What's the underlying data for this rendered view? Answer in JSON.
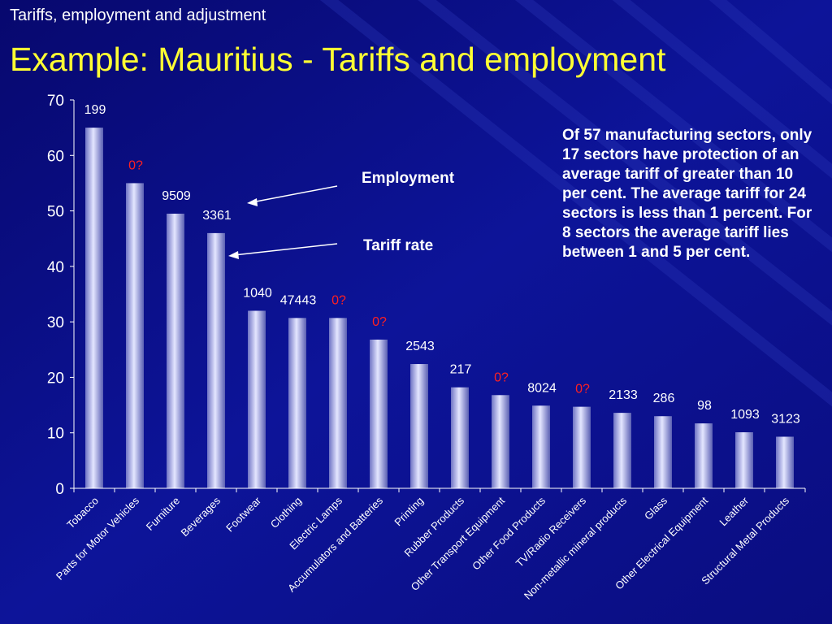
{
  "slide": {
    "subtitle": "Tariffs, employment and adjustment",
    "title": "Example: Mauritius - Tariffs and employment",
    "note": "Of 57 manufacturing sectors, only 17 sectors have protection of an average tariff of greater than 10 per cent. The average tariff for 24 sectors is less than 1 percent. For 8 sectors the average tariff lies between 1 and 5 per cent.",
    "callout_employment": "Employment",
    "callout_tariff": "Tariff rate"
  },
  "colors": {
    "background": "#0b0f8a",
    "title": "#ffff33",
    "text": "#ffffff",
    "label_unknown": "#ff2020",
    "bar": "#b8bce8"
  },
  "chart_data": {
    "type": "bar",
    "title": "",
    "xlabel": "",
    "ylabel": "",
    "ylim": [
      0,
      70
    ],
    "yticks": [
      0,
      10,
      20,
      30,
      40,
      50,
      60,
      70
    ],
    "grid": false,
    "categories": [
      "Tobacco",
      "Parts for Motor Vehicles",
      "Furniture",
      "Beverages",
      "Footwear",
      "Clothing",
      "Electric Lamps",
      "Accumulators and Batteries",
      "Printing",
      "Rubber Products",
      "Other Transport Equipment",
      "Other Food Products",
      "TV/Radio Receivers",
      "Non-metallic mineral products",
      "Glass",
      "Other Electrical Equipment",
      "Leather",
      "Structural Metal Products"
    ],
    "values": [
      65,
      55,
      49.5,
      46,
      32,
      30.7,
      30.7,
      26.8,
      22.4,
      18.2,
      16.8,
      14.9,
      14.7,
      13.6,
      13,
      11.7,
      10.1,
      9.3
    ],
    "data_labels": [
      "199",
      "0?",
      "9509",
      "3361",
      "1040",
      "47443",
      "0?",
      "0?",
      "2543",
      "217",
      "0?",
      "8024",
      "0?",
      "2133",
      "286",
      "98",
      "1093",
      "3123"
    ]
  }
}
